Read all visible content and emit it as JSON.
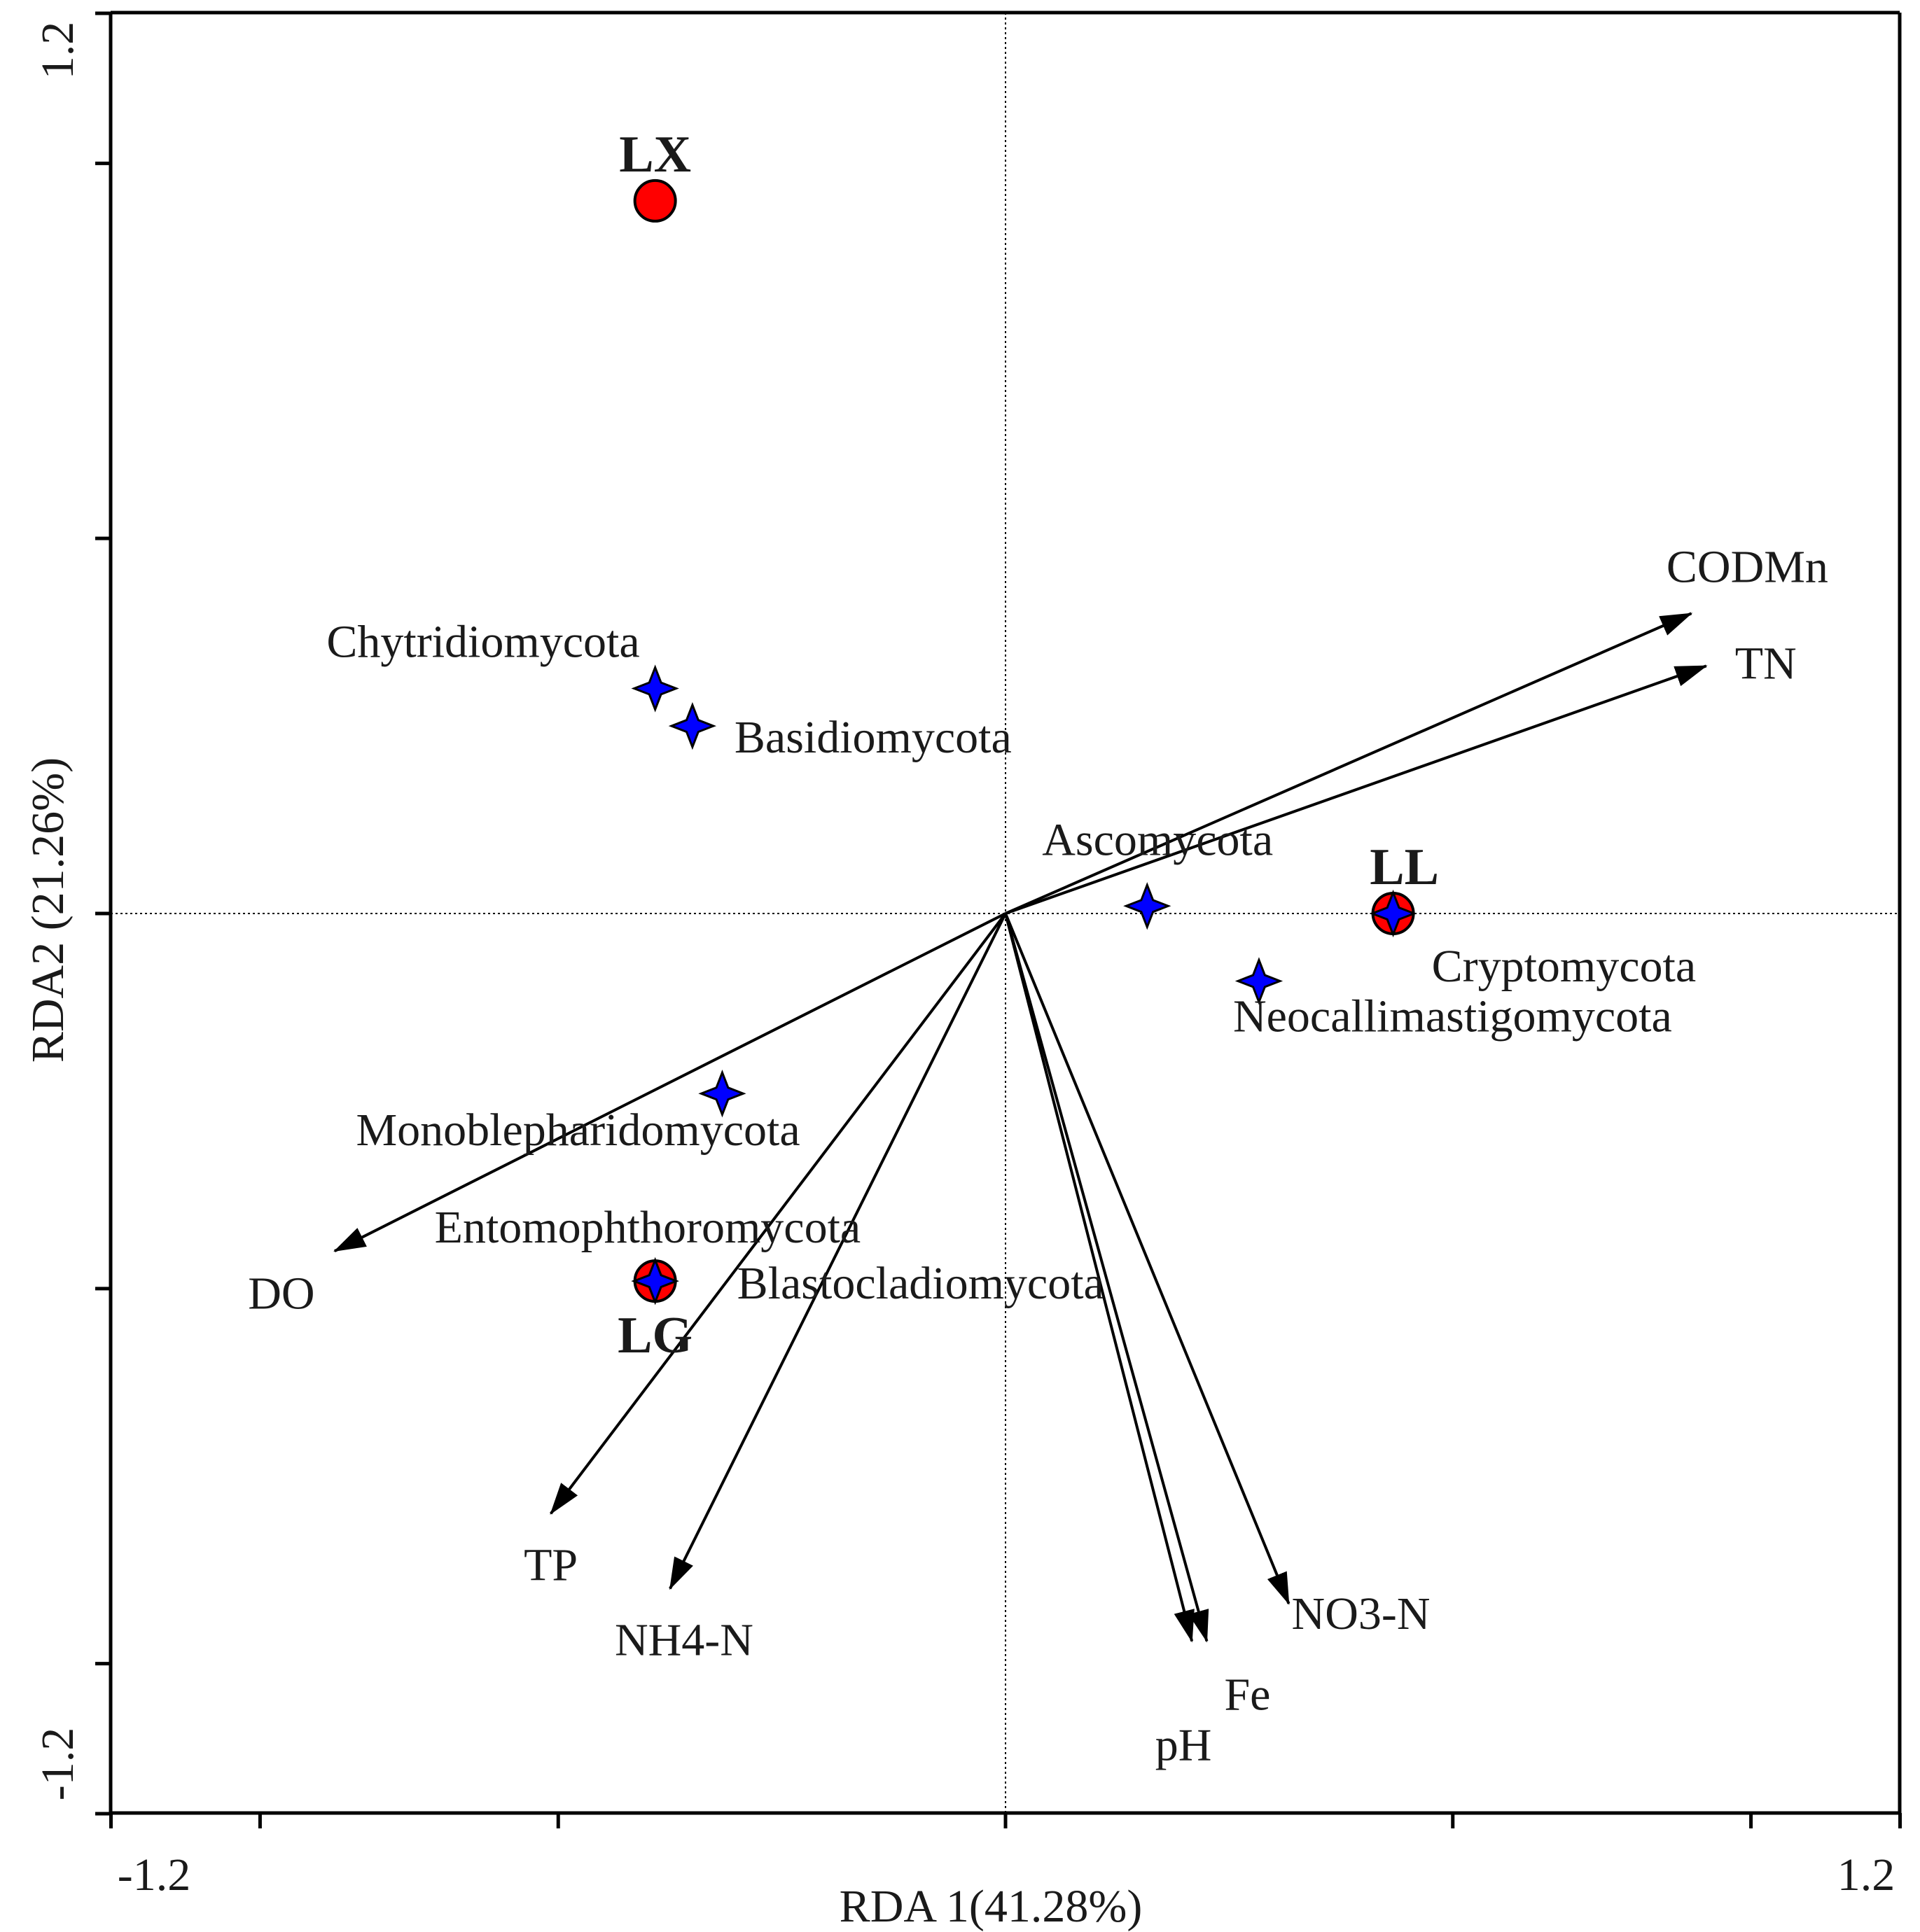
{
  "chart_data": {
    "type": "scatter",
    "subtype": "rda-triplot",
    "title": "",
    "xlabel": "RDA 1(41.28%)",
    "ylabel": "RDA2 (21.26%)",
    "xlim": [
      -1.2,
      1.2
    ],
    "ylim": [
      -1.2,
      1.2
    ],
    "x_tick_labels": [
      "-1.2",
      "1.2"
    ],
    "y_tick_labels": [
      "1.2",
      "-1.2"
    ],
    "colors": {
      "site_fill": "#ff0000",
      "species_fill": "#0000ff",
      "axis": "#000000",
      "arrow": "#000000"
    },
    "environmental_vectors": [
      {
        "name": "CODMn",
        "x": 0.92,
        "y": 0.4
      },
      {
        "name": "TN",
        "x": 0.94,
        "y": 0.33
      },
      {
        "name": "DO",
        "x": -0.9,
        "y": -0.45
      },
      {
        "name": "TP",
        "x": -0.61,
        "y": -0.8
      },
      {
        "name": "NH4-N",
        "x": -0.45,
        "y": -0.9
      },
      {
        "name": "pH",
        "x": 0.25,
        "y": -0.97
      },
      {
        "name": "Fe",
        "x": 0.27,
        "y": -0.97
      },
      {
        "name": "NO3-N",
        "x": 0.38,
        "y": -0.92
      }
    ],
    "species": [
      {
        "name": "Chytridiomycota",
        "x": -0.47,
        "y": 0.3
      },
      {
        "name": "Basidiomycota",
        "x": -0.42,
        "y": 0.25
      },
      {
        "name": "Ascomycota",
        "x": 0.19,
        "y": 0.01
      },
      {
        "name": "Cryptomycota",
        "x": 0.52,
        "y": 0.0
      },
      {
        "name": "Neocallimastigomycota",
        "x": 0.34,
        "y": -0.09
      },
      {
        "name": "Monoblepharidomycota",
        "x": -0.38,
        "y": -0.24
      },
      {
        "name": "Entomophthoromycota",
        "x": -0.47,
        "y": -0.49
      },
      {
        "name": "Blastocladiomycota",
        "x": -0.47,
        "y": -0.49
      }
    ],
    "sites": [
      {
        "name": "LX",
        "x": -0.47,
        "y": 0.95
      },
      {
        "name": "LL",
        "x": 0.52,
        "y": 0.0
      },
      {
        "name": "LG",
        "x": -0.47,
        "y": -0.49
      }
    ]
  }
}
